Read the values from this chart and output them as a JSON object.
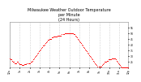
{
  "title": "Milwaukee Weather Outdoor Temperature\nper Minute\n(24 Hours)",
  "dot_color": "#ff0000",
  "background_color": "#ffffff",
  "grid_color": "#aaaaaa",
  "ylabel_color": "#000000",
  "y_tick_color": "#000000",
  "x_tick_color": "#000000",
  "ylim": [
    20,
    60
  ],
  "yticks": [
    25,
    30,
    35,
    40,
    45,
    50,
    55
  ],
  "title_fontsize": 3.5,
  "tick_fontsize": 2.2,
  "dot_size": 0.5,
  "xlim": [
    0,
    143
  ],
  "x_values": [
    0,
    1,
    2,
    3,
    4,
    5,
    6,
    7,
    8,
    9,
    10,
    11,
    12,
    13,
    14,
    15,
    16,
    17,
    18,
    19,
    20,
    21,
    22,
    23,
    24,
    25,
    26,
    27,
    28,
    29,
    30,
    31,
    32,
    33,
    34,
    35,
    36,
    37,
    38,
    39,
    40,
    41,
    42,
    43,
    44,
    45,
    46,
    47,
    48,
    49,
    50,
    51,
    52,
    53,
    54,
    55,
    56,
    57,
    58,
    59,
    60,
    61,
    62,
    63,
    64,
    65,
    66,
    67,
    68,
    69,
    70,
    71,
    72,
    73,
    74,
    75,
    76,
    77,
    78,
    79,
    80,
    81,
    82,
    83,
    84,
    85,
    86,
    87,
    88,
    89,
    90,
    91,
    92,
    93,
    94,
    95,
    96,
    97,
    98,
    99,
    100,
    101,
    102,
    103,
    104,
    105,
    106,
    107,
    108,
    109,
    110,
    111,
    112,
    113,
    114,
    115,
    116,
    117,
    118,
    119,
    120,
    121,
    122,
    123,
    124,
    125,
    126,
    127,
    128,
    129,
    130,
    131,
    132,
    133,
    134,
    135,
    136,
    137,
    138,
    139,
    140,
    141,
    142,
    143
  ],
  "y_values": [
    28,
    27,
    27,
    26,
    25,
    25,
    24,
    24,
    24,
    25,
    25,
    24,
    23,
    23,
    23,
    22,
    22,
    22,
    23,
    23,
    23,
    24,
    24,
    24,
    24,
    25,
    25,
    26,
    27,
    28,
    29,
    30,
    31,
    32,
    33,
    34,
    35,
    36,
    37,
    38,
    39,
    39,
    40,
    41,
    42,
    43,
    44,
    44,
    45,
    45,
    45,
    46,
    46,
    47,
    47,
    47,
    47,
    47,
    48,
    48,
    48,
    48,
    48,
    49,
    49,
    49,
    50,
    50,
    50,
    50,
    50,
    50,
    50,
    50,
    50,
    50,
    50,
    49,
    49,
    48,
    47,
    46,
    45,
    44,
    43,
    42,
    41,
    40,
    39,
    38,
    37,
    36,
    35,
    34,
    33,
    32,
    31,
    30,
    29,
    28,
    27,
    26,
    25,
    24,
    23,
    22,
    21,
    21,
    21,
    21,
    21,
    22,
    23,
    24,
    25,
    25,
    25,
    26,
    26,
    27,
    27,
    27,
    27,
    28,
    28,
    28,
    28,
    28,
    27,
    26,
    25,
    24,
    23,
    22,
    21,
    20,
    20,
    20,
    20,
    20,
    20,
    20,
    20,
    20
  ],
  "x_tick_positions": [
    0,
    12,
    24,
    36,
    48,
    60,
    72,
    84,
    96,
    108,
    120,
    132,
    143
  ],
  "x_tick_labels": [
    "12a",
    "1a",
    "2a",
    "3a",
    "4a",
    "5a",
    "6a",
    "7a",
    "8a",
    "9a",
    "10a",
    "11a",
    "12p"
  ]
}
